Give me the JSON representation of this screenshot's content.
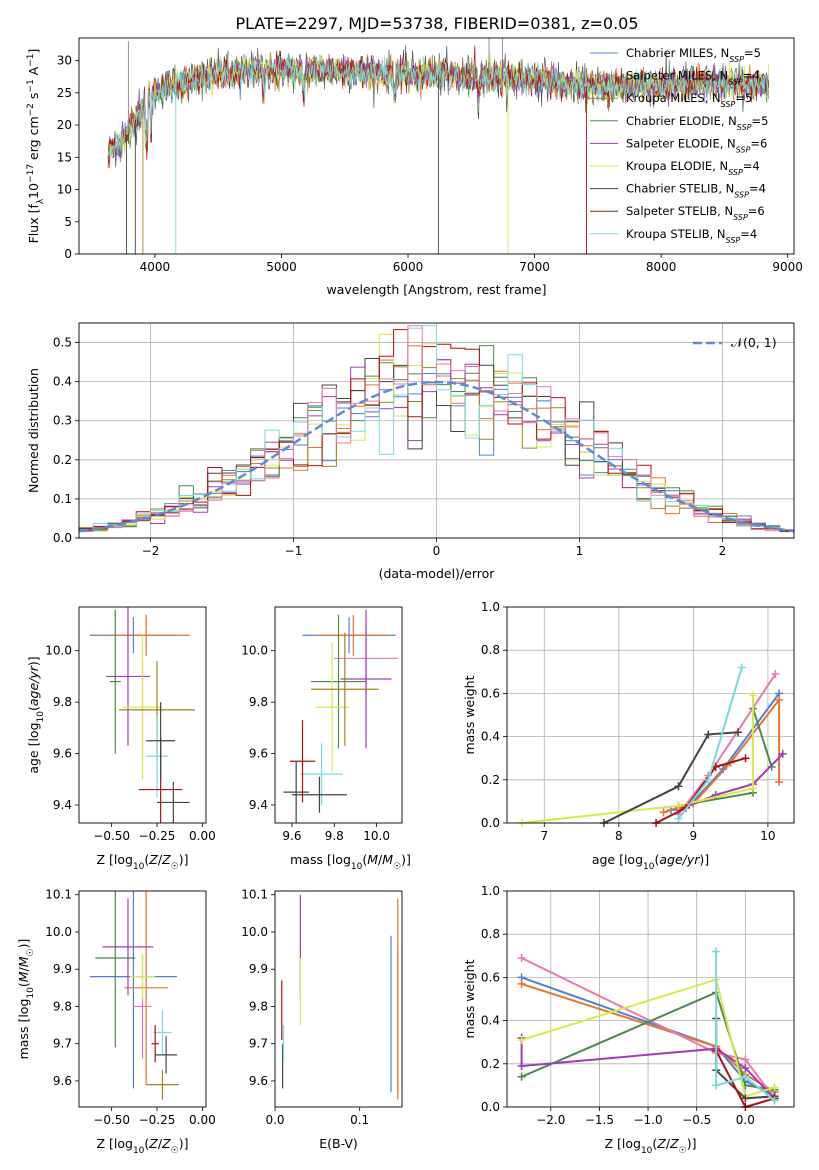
{
  "figure_title": "PLATE=2297, MJD=53738, FIBERID=0381, z=0.05",
  "models": [
    {
      "name": "Chabrier MILES",
      "nssp": "5",
      "color": "#4f7fd9"
    },
    {
      "name": "Salpeter MILES",
      "nssp": "4",
      "color": "#e8742e"
    },
    {
      "name": "Kroupa MILES",
      "nssp": "5",
      "color": "#a0841c"
    },
    {
      "name": "Chabrier ELODIE",
      "nssp": "5",
      "color": "#4b8a4b"
    },
    {
      "name": "Salpeter ELODIE",
      "nssp": "6",
      "color": "#a03cb8"
    },
    {
      "name": "Kroupa ELODIE",
      "nssp": "4",
      "color": "#d6e84a"
    },
    {
      "name": "Chabrier STELIB",
      "nssp": "4",
      "color": "#444444"
    },
    {
      "name": "Salpeter STELIB",
      "nssp": "6",
      "color": "#b01010"
    },
    {
      "name": "Kroupa STELIB",
      "nssp": "4",
      "color": "#78d8e0"
    }
  ],
  "extra_colors": {
    "pink": "#e87aa8",
    "normal_curve": "#5b8ad6"
  },
  "chart_data": [
    {
      "id": "spectrum",
      "type": "line",
      "xlabel": "wavelength [Angstrom, rest frame]",
      "ylabel": "Flux [f_λ 10^-17 erg cm^-2 s^-1 A^-1]",
      "xlim": [
        3400,
        9050
      ],
      "ylim": [
        0,
        33.5
      ],
      "xticks": [
        4000,
        5000,
        6000,
        7000,
        8000,
        9000
      ],
      "yticks": [
        0,
        5,
        10,
        15,
        20,
        25,
        30
      ],
      "continuum": {
        "x": [
          3620,
          3700,
          3800,
          3900,
          4000,
          4100,
          4300,
          4500,
          4800,
          5000,
          5300,
          5600,
          6000,
          6300,
          6600,
          6900,
          7100,
          7400,
          7600,
          7800,
          8000,
          8300,
          8600,
          8800
        ],
        "y": [
          15,
          17,
          19,
          23,
          25,
          26,
          27,
          28,
          28.5,
          28.5,
          28.5,
          28.3,
          28,
          27.8,
          27.5,
          27.3,
          27,
          26,
          25.8,
          26.2,
          26,
          26.8,
          26.3,
          26
        ]
      },
      "legend": "upper right"
    },
    {
      "id": "residuals",
      "type": "histogram",
      "xlabel": "(data-model)/error",
      "ylabel": "Normed distribution",
      "xlim": [
        -2.5,
        2.5
      ],
      "ylim": [
        0,
        0.55
      ],
      "xticks": [
        -2,
        -1,
        0,
        1,
        2
      ],
      "yticks": [
        0.0,
        0.1,
        0.2,
        0.3,
        0.4,
        0.5
      ],
      "bin_width": 0.1,
      "curve_label": "𝒩(0, 1)",
      "grid": true,
      "legend": "upper right"
    },
    {
      "id": "z_vs_age",
      "type": "scatter",
      "xlabel": "Z [log10(Z/Z☉)]",
      "ylabel": "age  [log10(age/yr)]",
      "xlim": [
        -0.68,
        0.02
      ],
      "ylim": [
        9.33,
        10.17
      ],
      "xticks": [
        -0.5,
        -0.25,
        0.0
      ],
      "yticks": [
        9.4,
        9.6,
        9.8,
        10.0
      ],
      "points": [
        {
          "x": -0.38,
          "xerr": 0.24,
          "y": 10.06,
          "yerr": 0.07
        },
        {
          "x": -0.31,
          "xerr": 0.24,
          "y": 10.06,
          "yerr": 0.08
        },
        {
          "x": -0.33,
          "xerr": 0.04,
          "y": 9.77,
          "yerr": 0.19
        },
        {
          "x": -0.48,
          "xerr": 0.03,
          "y": 9.88,
          "yerr": 0.28
        },
        {
          "x": -0.41,
          "xerr": 0.12,
          "y": 9.9,
          "yerr": 0.27
        },
        {
          "x": -0.33,
          "xerr": 0.11,
          "y": 9.78,
          "yerr": 0.28
        },
        {
          "x": -0.25,
          "xerr": 0.21,
          "y": 9.77,
          "yerr": 0.19
        },
        {
          "x": -0.25,
          "xerr": 0.06,
          "y": 9.59,
          "yerr": 0.16
        },
        {
          "x": -0.23,
          "xerr": 0.12,
          "y": 9.46,
          "yerr": 0.2
        },
        {
          "x": -0.23,
          "xerr": 0.08,
          "y": 9.65,
          "yerr": 0.15
        },
        {
          "x": -0.16,
          "xerr": 0.09,
          "y": 9.41,
          "yerr": 0.08
        }
      ]
    },
    {
      "id": "mass_vs_age",
      "type": "scatter",
      "xlabel": "mass [log10(M/M☉)]",
      "ylabel": "",
      "xlim": [
        9.52,
        10.12
      ],
      "ylim": [
        9.33,
        10.17
      ],
      "xticks": [
        9.6,
        9.8,
        10.0
      ],
      "yticks": [
        9.4,
        9.6,
        9.8,
        10.0
      ],
      "points": [
        {
          "x": 9.87,
          "xerr": 0.22,
          "y": 10.06,
          "yerr": 0.07
        },
        {
          "x": 9.89,
          "xerr": 0.17,
          "y": 10.06,
          "yerr": 0.08
        },
        {
          "x": 9.95,
          "xerr": 0.15,
          "y": 9.97,
          "yerr": 0.14
        },
        {
          "x": 9.82,
          "xerr": 0.13,
          "y": 9.88,
          "yerr": 0.26
        },
        {
          "x": 9.95,
          "xerr": 0.12,
          "y": 9.89,
          "yerr": 0.27
        },
        {
          "x": 9.79,
          "xerr": 0.08,
          "y": 9.78,
          "yerr": 0.25
        },
        {
          "x": 9.85,
          "xerr": 0.16,
          "y": 9.85,
          "yerr": 0.22
        },
        {
          "x": 9.74,
          "xerr": 0.1,
          "y": 9.52,
          "yerr": 0.12
        },
        {
          "x": 9.65,
          "xerr": 0.06,
          "y": 9.57,
          "yerr": 0.16
        },
        {
          "x": 9.62,
          "xerr": 0.06,
          "y": 9.45,
          "yerr": 0.12
        },
        {
          "x": 9.73,
          "xerr": 0.13,
          "y": 9.44,
          "yerr": 0.07
        }
      ]
    },
    {
      "id": "age_vs_weight",
      "type": "line",
      "xlabel": "age  [log10(age/yr)]",
      "ylabel": "mass weight",
      "xlim": [
        6.5,
        10.35
      ],
      "ylim": [
        0,
        1.0
      ],
      "xticks": [
        7,
        8,
        9,
        10
      ],
      "yticks": [
        0.0,
        0.2,
        0.4,
        0.6,
        0.8,
        1.0
      ],
      "grid": true,
      "series": [
        {
          "color": "#4f7fd9",
          "x": [
            8.7,
            9.0,
            9.4,
            10.15
          ],
          "y": [
            0.06,
            0.1,
            0.25,
            0.6
          ]
        },
        {
          "color": "#e8742e",
          "x": [
            8.6,
            9.0,
            9.5,
            10.15,
            10.15
          ],
          "y": [
            0.05,
            0.09,
            0.28,
            0.57,
            0.19
          ]
        },
        {
          "color": "#e87aa8",
          "x": [
            8.8,
            9.2,
            10.1
          ],
          "y": [
            0.04,
            0.22,
            0.69
          ]
        },
        {
          "color": "#4b8a4b",
          "x": [
            8.8,
            9.8,
            9.8,
            10.05
          ],
          "y": [
            0.08,
            0.14,
            0.53,
            0.26
          ]
        },
        {
          "color": "#a03cb8",
          "x": [
            8.8,
            9.3,
            9.8,
            10.2
          ],
          "y": [
            0.06,
            0.13,
            0.18,
            0.32
          ]
        },
        {
          "color": "#d6e84a",
          "x": [
            6.7,
            8.8,
            9.8,
            9.8
          ],
          "y": [
            0.0,
            0.08,
            0.16,
            0.59
          ]
        },
        {
          "color": "#444444",
          "x": [
            7.8,
            8.8,
            9.2,
            9.6
          ],
          "y": [
            0.0,
            0.17,
            0.41,
            0.42
          ]
        },
        {
          "color": "#b01010",
          "x": [
            8.5,
            8.9,
            9.3,
            9.7
          ],
          "y": [
            0.0,
            0.07,
            0.26,
            0.3
          ]
        },
        {
          "color": "#78d8e0",
          "x": [
            8.8,
            9.2,
            9.65
          ],
          "y": [
            0.02,
            0.2,
            0.72
          ]
        }
      ]
    },
    {
      "id": "z_vs_mass",
      "type": "scatter",
      "xlabel": "Z [log10(Z/Z☉)]",
      "ylabel": "mass [log10(M/M☉)]",
      "xlim": [
        -0.68,
        0.02
      ],
      "ylim": [
        9.53,
        10.11
      ],
      "xticks": [
        -0.5,
        -0.25,
        0.0
      ],
      "yticks": [
        9.6,
        9.7,
        9.8,
        9.9,
        10.0,
        10.1
      ],
      "points": [
        {
          "x": -0.38,
          "xerr": 0.24,
          "y": 9.88,
          "yerr": 0.3
        },
        {
          "x": -0.31,
          "xerr": 0.12,
          "y": 9.85,
          "yerr": 0.26
        },
        {
          "x": -0.33,
          "xerr": 0.05,
          "y": 9.8,
          "yerr": 0.14
        },
        {
          "x": -0.48,
          "xerr": 0.11,
          "y": 9.93,
          "yerr": 0.24
        },
        {
          "x": -0.41,
          "xerr": 0.14,
          "y": 9.96,
          "yerr": 0.13
        },
        {
          "x": -0.33,
          "xerr": 0.07,
          "y": 9.88,
          "yerr": 0.06
        },
        {
          "x": -0.22,
          "xerr": 0.09,
          "y": 9.59,
          "yerr": 0.04
        },
        {
          "x": -0.22,
          "xerr": 0.05,
          "y": 9.73,
          "yerr": 0.06
        },
        {
          "x": -0.26,
          "xerr": 0.02,
          "y": 9.7,
          "yerr": 0.05
        },
        {
          "x": -0.2,
          "xerr": 0.06,
          "y": 9.67,
          "yerr": 0.05
        }
      ]
    },
    {
      "id": "ebv_vs_mass",
      "type": "scatter",
      "xlabel": "E(B-V)",
      "ylabel": "",
      "xlim": [
        0,
        0.15
      ],
      "ylim": [
        9.53,
        10.11
      ],
      "xticks": [
        0.0,
        0.1
      ],
      "yticks": [
        9.6,
        9.7,
        9.8,
        9.9,
        10.0,
        10.1
      ],
      "points": [
        {
          "x": 0.008,
          "y": 9.79,
          "yerr": 0.08
        },
        {
          "x": 0.009,
          "y": 9.64,
          "yerr": 0.06
        },
        {
          "x": 0.01,
          "y": 9.7,
          "yerr": 0.05
        },
        {
          "x": 0.03,
          "y": 9.96,
          "yerr": 0.14
        },
        {
          "x": 0.03,
          "y": 9.84,
          "yerr": 0.09
        },
        {
          "x": 0.137,
          "y": 9.78,
          "yerr": 0.21
        },
        {
          "x": 0.145,
          "y": 9.83,
          "yerr": 0.26
        },
        {
          "x": 0.145,
          "y": 9.75,
          "yerr": 0.2
        }
      ]
    },
    {
      "id": "z_vs_weight",
      "type": "line",
      "xlabel": "Z [log10(Z/Z☉)]",
      "ylabel": "mass weight",
      "xlim": [
        -2.45,
        0.5
      ],
      "ylim": [
        0,
        1.0
      ],
      "xticks": [
        -2.0,
        -1.5,
        -1.0,
        -0.5,
        0.0
      ],
      "yticks": [
        0.0,
        0.2,
        0.4,
        0.6,
        0.8,
        1.0
      ],
      "grid": true,
      "series": [
        {
          "color": "#4f7fd9",
          "x": [
            -2.3,
            -0.3,
            0.0,
            0.3
          ],
          "y": [
            0.6,
            0.28,
            0.12,
            0.05
          ]
        },
        {
          "color": "#e8742e",
          "x": [
            -2.3,
            -0.3,
            0.0,
            0.3
          ],
          "y": [
            0.57,
            0.28,
            0.15,
            0.07
          ]
        },
        {
          "color": "#e87aa8",
          "x": [
            -2.3,
            -0.3,
            0.0,
            0.3
          ],
          "y": [
            0.69,
            0.25,
            0.22,
            0.04
          ]
        },
        {
          "color": "#4b8a4b",
          "x": [
            -2.3,
            -0.3,
            0.0,
            0.3
          ],
          "y": [
            0.14,
            0.53,
            0.1,
            0.08
          ]
        },
        {
          "color": "#a03cb8",
          "x": [
            -2.3,
            -2.3,
            -0.3,
            0.0,
            0.3
          ],
          "y": [
            0.32,
            0.19,
            0.27,
            0.18,
            0.04
          ]
        },
        {
          "color": "#d6e84a",
          "x": [
            -2.3,
            -0.3,
            0.0,
            0.3
          ],
          "y": [
            0.31,
            0.59,
            0.05,
            0.09
          ]
        },
        {
          "color": "#444444",
          "x": [
            -0.3,
            -0.3,
            0.0,
            0.3
          ],
          "y": [
            0.41,
            0.17,
            0.04,
            0.05
          ]
        },
        {
          "color": "#b01010",
          "x": [
            -0.3,
            0.0,
            0.3
          ],
          "y": [
            0.26,
            0.0,
            0.04
          ]
        },
        {
          "color": "#78d8e0",
          "x": [
            -0.3,
            -0.3,
            0.0,
            0.3
          ],
          "y": [
            0.72,
            0.1,
            0.14,
            0.03
          ]
        }
      ]
    }
  ]
}
